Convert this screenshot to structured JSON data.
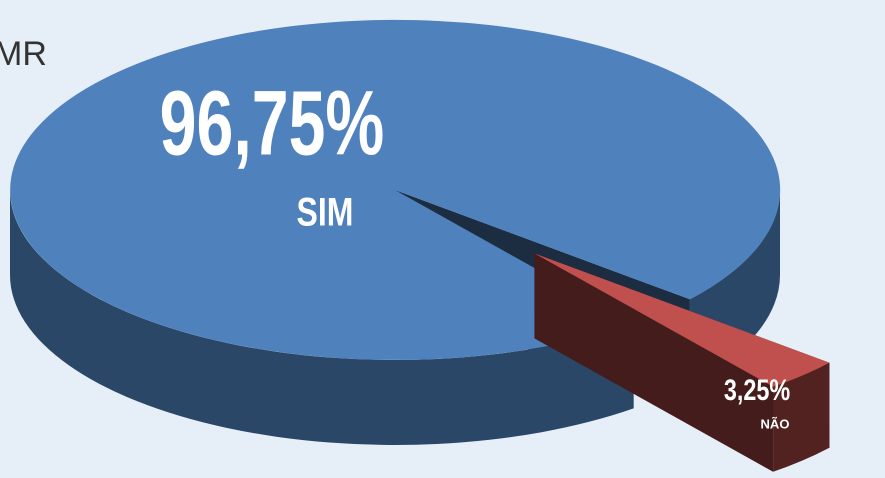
{
  "chart_data": {
    "type": "pie",
    "title": "MR",
    "categories": [
      "SIM",
      "NÃO"
    ],
    "values": [
      96.75,
      3.25
    ],
    "value_labels": [
      "96,75%",
      "3,25%"
    ],
    "colors": [
      "#4f81bd",
      "#c0504d"
    ]
  }
}
